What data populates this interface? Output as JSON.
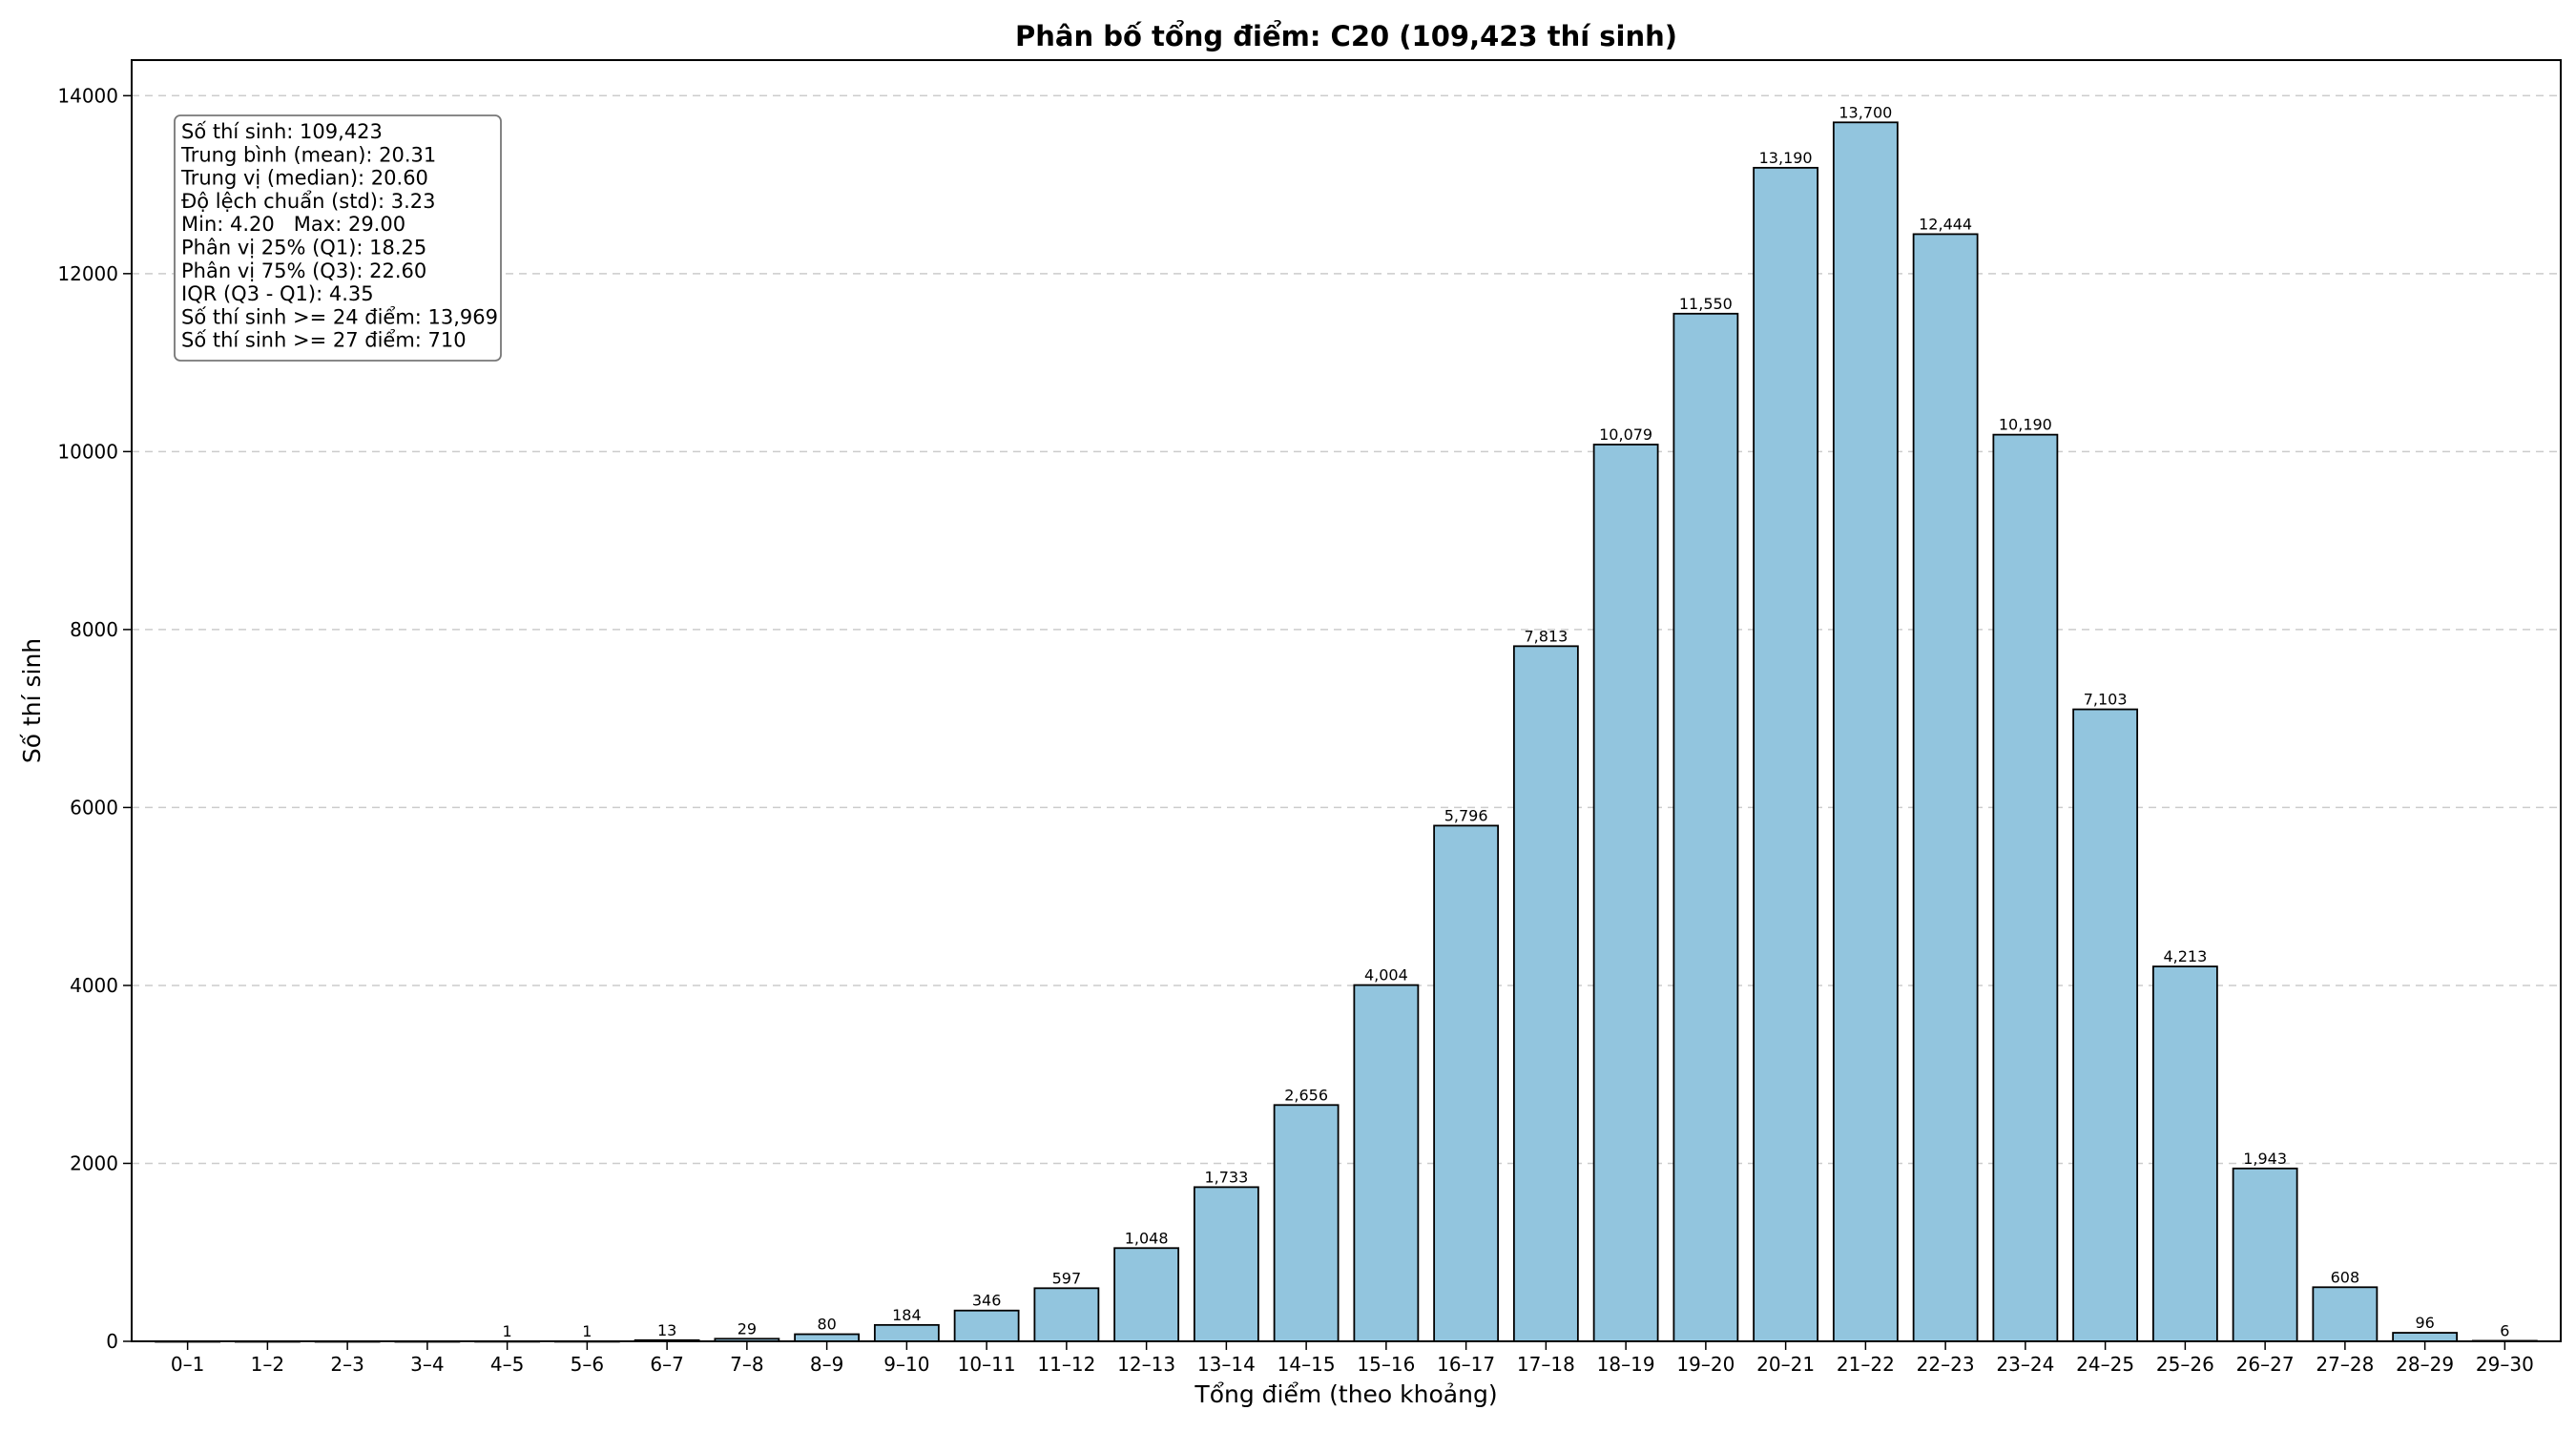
{
  "chart_data": {
    "type": "bar",
    "title": "Phân bố tổng điểm: C20 (109,423 thí sinh)",
    "xlabel": "Tổng điểm (theo khoảng)",
    "ylabel": "Số thí sinh",
    "ylim": [
      0,
      14400
    ],
    "yticks": [
      0,
      2000,
      4000,
      6000,
      8000,
      10000,
      12000,
      14000
    ],
    "grid": "y-dashed",
    "bar_color": "#92c5de",
    "categories": [
      "0–1",
      "1–2",
      "2–3",
      "3–4",
      "4–5",
      "5–6",
      "6–7",
      "7–8",
      "8–9",
      "9–10",
      "10–11",
      "11–12",
      "12–13",
      "13–14",
      "14–15",
      "15–16",
      "16–17",
      "17–18",
      "18–19",
      "19–20",
      "20–21",
      "21–22",
      "22–23",
      "23–24",
      "24–25",
      "25–26",
      "26–27",
      "27–28",
      "28–29",
      "29–30"
    ],
    "values": [
      0,
      0,
      0,
      0,
      1,
      1,
      13,
      29,
      80,
      184,
      346,
      597,
      1048,
      1733,
      2656,
      4004,
      5796,
      7813,
      10079,
      11550,
      13190,
      13700,
      12444,
      10190,
      7103,
      4213,
      1943,
      608,
      96,
      6
    ],
    "value_labels": [
      "",
      "",
      "",
      "",
      "1",
      "1",
      "13",
      "29",
      "80",
      "184",
      "346",
      "597",
      "1,048",
      "1,733",
      "2,656",
      "4,004",
      "5,796",
      "7,813",
      "10,079",
      "11,550",
      "13,190",
      "13,700",
      "12,444",
      "10,190",
      "7,103",
      "4,213",
      "1,943",
      "608",
      "96",
      "6"
    ],
    "stats_box": {
      "position": "top-left",
      "lines": [
        "Số thí sinh: 109,423",
        "Trung bình (mean): 20.31",
        "Trung vị (median): 20.60",
        "Độ lệch chuẩn (std): 3.23",
        "Min: 4.20   Max: 29.00",
        "Phân vị 25% (Q1): 18.25",
        "Phân vị 75% (Q3): 22.60",
        "IQR (Q3 - Q1): 4.35",
        "Số thí sinh >= 24 điểm: 13,969",
        "Số thí sinh >= 27 điểm: 710"
      ]
    }
  }
}
